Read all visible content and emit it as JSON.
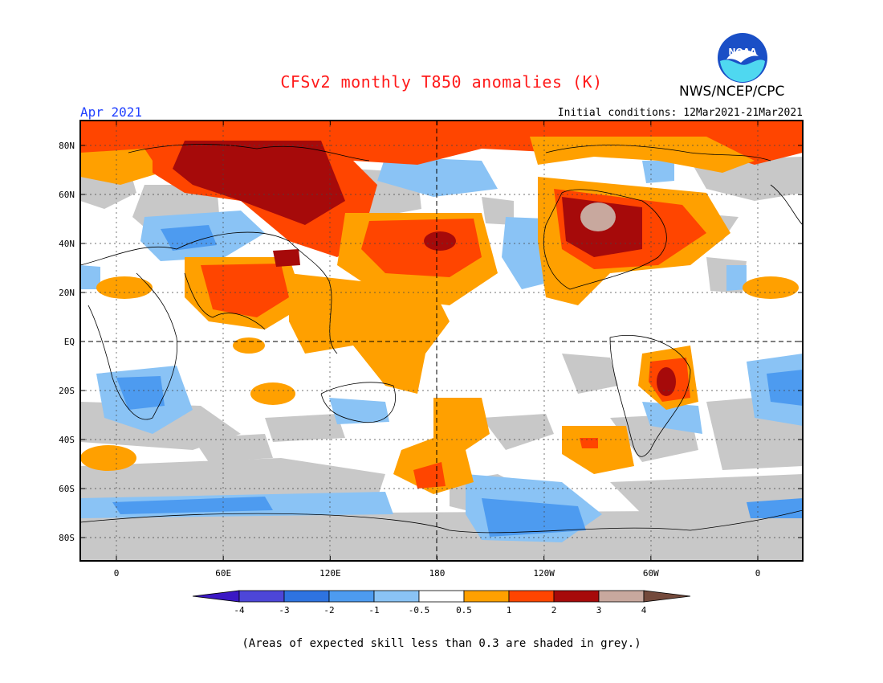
{
  "header": {
    "title": "CFSv2 monthly T850 anomalies (K)",
    "agency": "NWS/NCEP/CPC",
    "month": "Apr 2021",
    "initial_conditions": "Initial conditions: 12Mar2021-21Mar2021"
  },
  "logo": {
    "icon": "noaa-logo-icon",
    "text": "NOAA"
  },
  "map": {
    "lat_labels": [
      "80N",
      "60N",
      "40N",
      "20N",
      "EQ",
      "20S",
      "40S",
      "60S",
      "80S"
    ],
    "lat_values": [
      80,
      60,
      40,
      20,
      0,
      -20,
      -40,
      -60,
      -80
    ],
    "lon_labels": [
      "0",
      "60E",
      "120E",
      "180",
      "120W",
      "60W",
      "0"
    ],
    "lon_values": [
      0,
      60,
      120,
      180,
      240,
      300,
      360
    ]
  },
  "legend": {
    "tick_labels": [
      "-4",
      "-3",
      "-2",
      "-1",
      "-0.5",
      "0.5",
      "1",
      "2",
      "3",
      "4"
    ],
    "colors": [
      "#3b18c4",
      "#4d46d8",
      "#2e73e0",
      "#4d9bf0",
      "#8ac3f5",
      "#ffffff",
      "#ffa000",
      "#ff4500",
      "#a60a0a",
      "#c8a89e",
      "#744a3c"
    ]
  },
  "footnote": "(Areas of expected skill less than 0.3 are shaded in grey.)"
}
